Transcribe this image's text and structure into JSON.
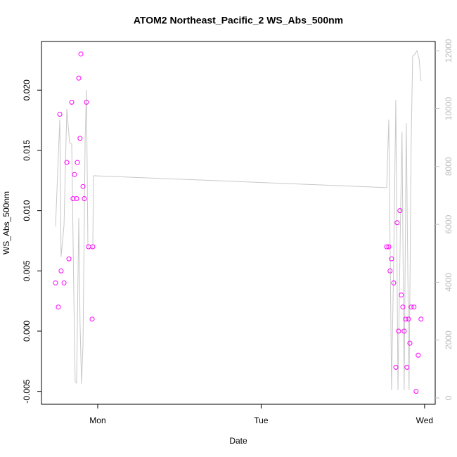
{
  "chart_data": {
    "type": "scatter-line",
    "title": "ATOM2 Northeast_Pacific_2 WS_Abs_500nm",
    "x_label": "Date",
    "y_label": "WS_Abs_500nm",
    "xlim": [
      -0.344,
      2.065
    ],
    "xticks": [
      {
        "value": 0,
        "label": "Mon"
      },
      {
        "value": 1,
        "label": "Tue"
      },
      {
        "value": 2,
        "label": "Wed"
      }
    ],
    "ylim": [
      -0.00607,
      0.02404
    ],
    "yticks": [
      -0.005,
      {
        "value": 0,
        "label": "0.000"
      },
      0.005,
      {
        "value": 0.01,
        "label": "0.010"
      },
      0.015,
      {
        "value": 0.02,
        "label": "0.020"
      }
    ],
    "y2lim": [
      -219,
      12321
    ],
    "y2ticks": [
      0,
      2000,
      4000,
      6000,
      8000,
      10000,
      12000
    ],
    "series": [
      {
        "kind": "points",
        "color": "#ff00ff",
        "x": [
          -0.258,
          -0.241,
          -0.232,
          -0.224,
          -0.206,
          -0.189,
          -0.176,
          -0.159,
          -0.151,
          -0.142,
          -0.129,
          -0.125,
          -0.116,
          -0.108,
          -0.103,
          -0.09,
          -0.082,
          -0.069,
          -0.056,
          -0.034,
          -0.03,
          1.768,
          1.781,
          1.789,
          1.798,
          1.811,
          1.824,
          1.832,
          1.841,
          1.849,
          1.858,
          1.867,
          1.875,
          1.884,
          1.892,
          1.901,
          1.91,
          1.918,
          1.935,
          1.948,
          1.961,
          1.978
        ],
        "values": [
          0.004,
          0.002,
          0.018,
          0.005,
          0.004,
          0.014,
          0.006,
          0.019,
          0.011,
          0.013,
          0.011,
          0.014,
          0.021,
          0.016,
          0.023,
          0.012,
          0.011,
          0.019,
          0.007,
          0.001,
          0.007,
          0.007,
          0.007,
          0.005,
          0.006,
          0.004,
          -0.003,
          0.009,
          0.0,
          0.01,
          0.003,
          0.002,
          0.0,
          0.001,
          -0.003,
          0.001,
          -0.001,
          0.002,
          0.002,
          -0.005,
          -0.002,
          0.001
        ]
      },
      {
        "kind": "line",
        "axis": "y2",
        "color": "#c8c8c8",
        "x": [
          -0.258,
          -0.232,
          -0.224,
          -0.206,
          -0.189,
          -0.172,
          -0.159,
          -0.146,
          -0.138,
          -0.129,
          -0.116,
          -0.108,
          -0.099,
          -0.09,
          -0.077,
          -0.069,
          -0.06,
          -0.047,
          -0.03,
          -0.026,
          -0.017,
          1.768,
          1.781,
          1.798,
          1.811,
          1.824,
          1.837,
          1.854,
          1.862,
          1.875,
          1.888,
          1.905,
          1.918,
          1.927,
          1.94,
          1.953,
          1.966,
          1.978
        ],
        "values": [
          5930,
          9620,
          4880,
          5980,
          9990,
          8820,
          8770,
          3550,
          560,
          510,
          6220,
          2580,
          490,
          1850,
          8890,
          10640,
          5250,
          5180,
          5180,
          7680,
          7680,
          7270,
          9620,
          270,
          4760,
          10300,
          270,
          6710,
          9190,
          270,
          9500,
          270,
          8890,
          11810,
          11880,
          12000,
          11740,
          10960
        ]
      }
    ]
  }
}
